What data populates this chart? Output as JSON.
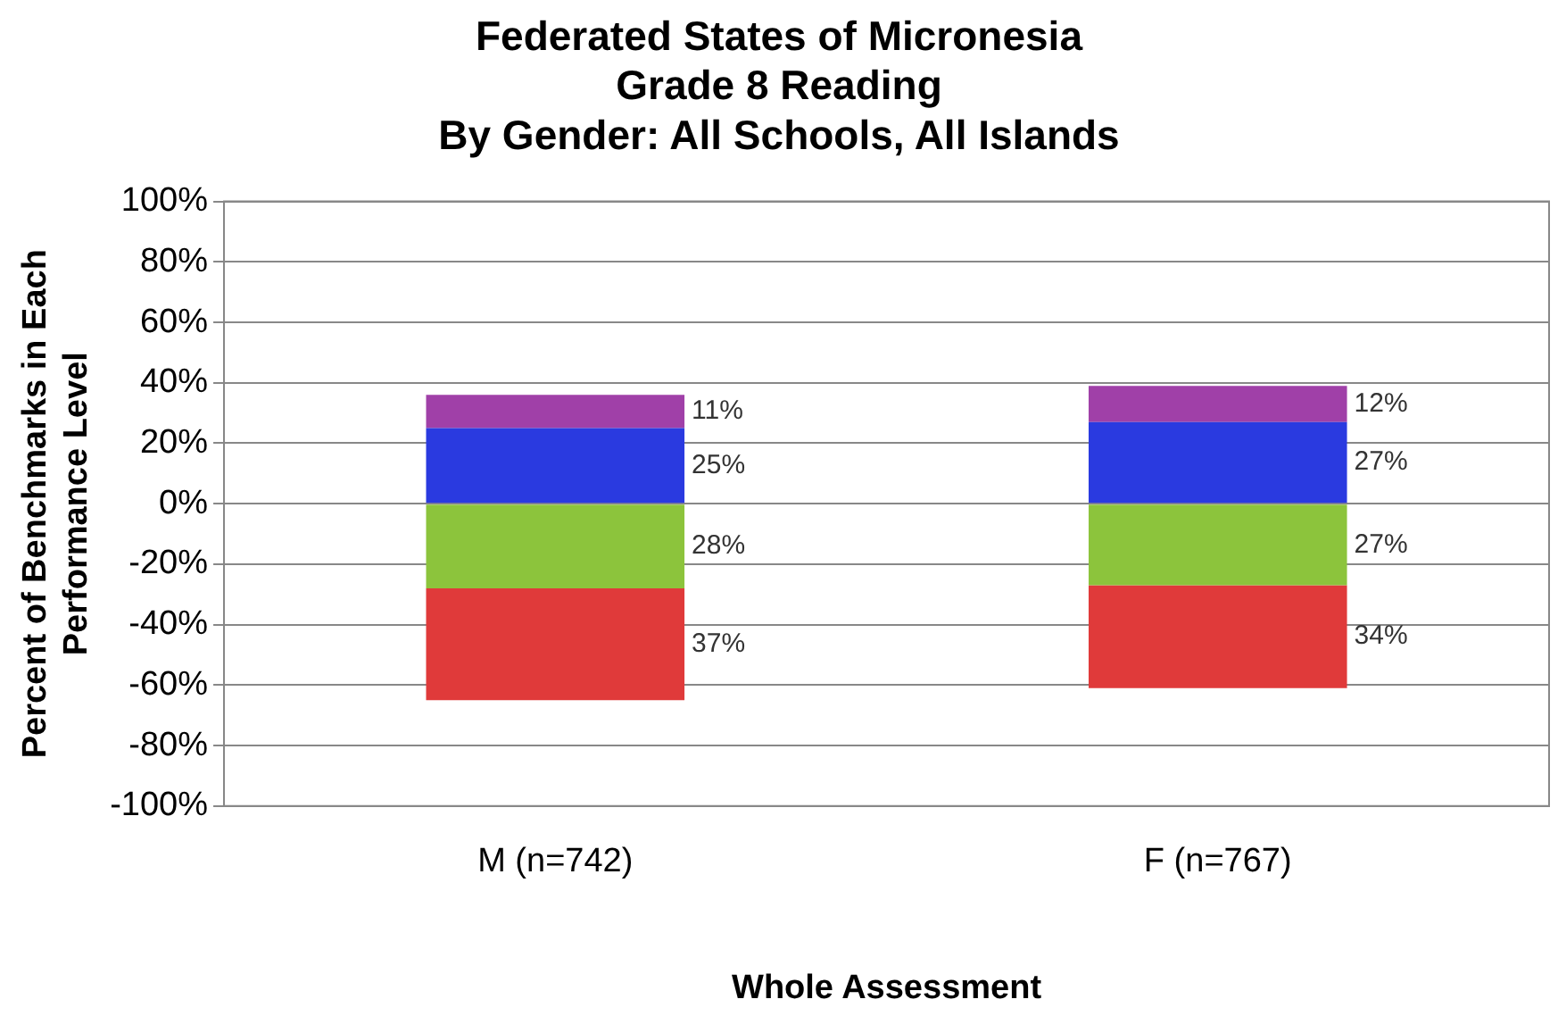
{
  "chart_data": {
    "type": "bar",
    "stacked": true,
    "title": "Federated States of Micronesia\nGrade 8 Reading\nBy Gender: All Schools, All Islands",
    "xlabel": "Whole Assessment",
    "ylabel": "Percent of Benchmarks in Each\nPerformance Level",
    "categories": [
      "M (n=742)",
      "F (n=767)"
    ],
    "series": [
      {
        "color": "#8cc43c",
        "values": [
          -28,
          -27
        ]
      },
      {
        "color": "#e03a3a",
        "values": [
          -37,
          -34
        ]
      },
      {
        "color": "#2a3ae0",
        "values": [
          25,
          27
        ]
      },
      {
        "color": "#a040a8",
        "values": [
          11,
          12
        ]
      }
    ],
    "annotations": [
      "28%",
      "37%",
      "25%",
      "11%",
      "27%",
      "34%",
      "27%",
      "12%"
    ],
    "ylim": [
      -100,
      100
    ],
    "yticks": [
      {
        "value": -100,
        "label": "-100%"
      },
      {
        "value": -80,
        "label": "-80%"
      },
      {
        "value": -60,
        "label": "-60%"
      },
      {
        "value": -40,
        "label": "-40%"
      },
      {
        "value": -20,
        "label": "-20%"
      },
      {
        "value": 0,
        "label": "0%"
      },
      {
        "value": 20,
        "label": "20%"
      },
      {
        "value": 40,
        "label": "40%"
      },
      {
        "value": 60,
        "label": "60%"
      },
      {
        "value": 80,
        "label": "80%"
      },
      {
        "value": 100,
        "label": "100%"
      }
    ],
    "grid": "y",
    "legend": false
  }
}
